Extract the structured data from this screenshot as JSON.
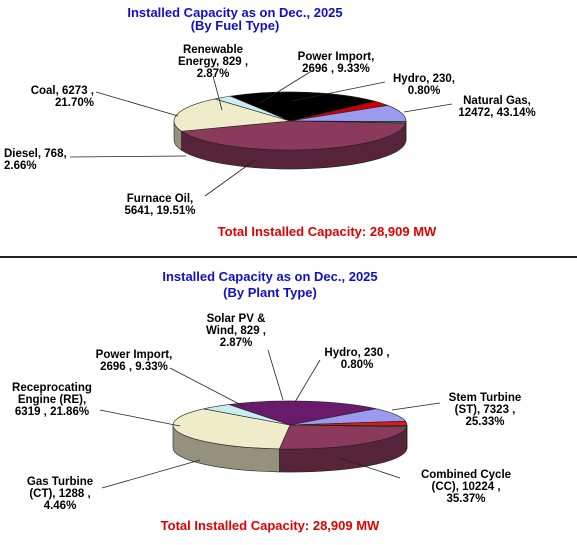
{
  "chart_data": [
    {
      "type": "pie",
      "title": "Installed Capacity as on Dec., 2025",
      "subtitle": "(By Fuel Type)",
      "total_label": "Total Installed Capacity: 28,909 MW",
      "slices": [
        {
          "name": "Natural Gas",
          "value": 12472,
          "percent": 43.14,
          "color": "#8c3a5c",
          "label": [
            "Natural Gas,",
            "12472, 43.14%"
          ]
        },
        {
          "name": "Furnace Oil",
          "value": 5641,
          "percent": 19.51,
          "color": "#eeecc9",
          "label": [
            "Furnace Oil,",
            "5641, 19.51%"
          ]
        },
        {
          "name": "Diesel",
          "value": 768,
          "percent": 2.66,
          "color": "#c8eef2",
          "label": [
            "Diesel, 768,",
            "2.66%"
          ]
        },
        {
          "name": "Coal",
          "value": 6273,
          "percent": 21.7,
          "color": "#000000",
          "label": [
            "Coal, 6273 ,",
            "21.70%"
          ]
        },
        {
          "name": "Renewable Energy",
          "value": 829,
          "percent": 2.87,
          "color": "#cc0000",
          "label": [
            "Renewable",
            "Energy, 829 ,",
            "2.87%"
          ]
        },
        {
          "name": "Power Import",
          "value": 2696,
          "percent": 9.33,
          "color": "#9b9af0",
          "label": [
            "Power Import,",
            "2696 , 9.33%"
          ]
        },
        {
          "name": "Hydro",
          "value": 230,
          "percent": 0.8,
          "color": "#1e8f4e",
          "label": [
            "Hydro, 230,",
            "0.80%"
          ]
        }
      ]
    },
    {
      "type": "pie",
      "title": "Installed Capacity as on Dec., 2025",
      "subtitle": "(By Plant Type)",
      "total_label": "Total Installed Capacity: 28,909 MW",
      "slices": [
        {
          "name": "Stem Turbine (ST)",
          "value": 7323,
          "percent": 25.33,
          "color": "#8c3a5c",
          "label": [
            "Stem Turbine",
            "(ST), 7323 ,",
            "25.33%"
          ]
        },
        {
          "name": "Combined Cycle (CC)",
          "value": 10224,
          "percent": 35.37,
          "color": "#eeecc9",
          "label": [
            "Combined Cycle",
            "(CC), 10224 ,",
            "35.37%"
          ]
        },
        {
          "name": "Gas Turbine (CT)",
          "value": 1288,
          "percent": 4.46,
          "color": "#c8eef2",
          "label": [
            "Gas Turbine",
            "(CT), 1288 ,",
            "4.46%"
          ]
        },
        {
          "name": "Receprocating Engine (RE)",
          "value": 6319,
          "percent": 21.86,
          "color": "#6a1a6a",
          "label": [
            "Receprocating",
            "Engine (RE),",
            "6319 , 21.86%"
          ]
        },
        {
          "name": "Power Import",
          "value": 2696,
          "percent": 9.33,
          "color": "#9b9af0",
          "label": [
            "Power Import,",
            "2696 , 9.33%"
          ]
        },
        {
          "name": "Solar PV & Wind",
          "value": 829,
          "percent": 2.87,
          "color": "#ee1111",
          "label": [
            "Solar PV &",
            "Wind, 829 ,",
            "2.87%"
          ]
        },
        {
          "name": "Hydro",
          "value": 230,
          "percent": 0.8,
          "color": "#1e8f4e",
          "label": [
            "Hydro, 230 ,",
            "0.80%"
          ]
        }
      ]
    }
  ]
}
